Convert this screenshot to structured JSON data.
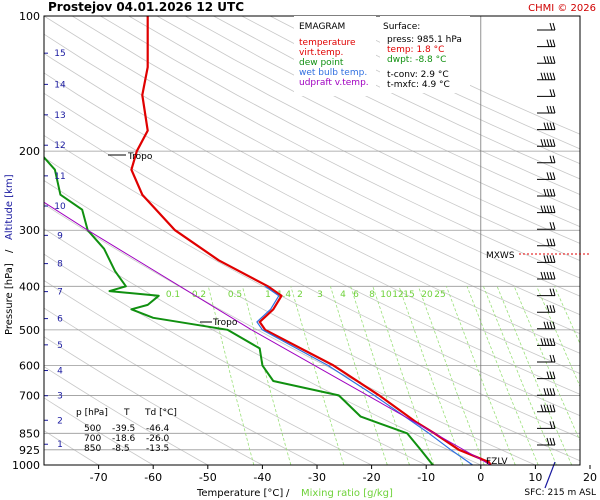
{
  "header": {
    "title": "Prostejov   04.01.2026 12 UTC",
    "copyright": "CHMI © 2026"
  },
  "legend": {
    "title": "EMAGRAM",
    "items": [
      {
        "label": "temperature",
        "color": "#e00000"
      },
      {
        "label": "virt.temp.",
        "color": "#e00000"
      },
      {
        "label": "dew point",
        "color": "#109010"
      },
      {
        "label": "wet bulb temp.",
        "color": "#3070e0"
      },
      {
        "label": "udpraft v.temp.",
        "color": "#a000c0"
      }
    ]
  },
  "surface": {
    "title": "Surface:",
    "press": "press: 985.1 hPa",
    "temp": "temp: 1.8 °C",
    "dwpt": "dwpt: -8.8 °C",
    "tconv": "t-conv: 2.9 °C",
    "tmxfc": "t-mxfc: 4.9 °C"
  },
  "table": {
    "header": [
      "p [hPa]",
      "T",
      "Td [°C]"
    ],
    "rows": [
      [
        "500",
        "-39.5",
        "-46.4"
      ],
      [
        "700",
        "-18.6",
        "-26.0"
      ],
      [
        "850",
        "-8.5",
        "-13.5"
      ]
    ]
  },
  "annotations": {
    "tropo_upper": "Tropo",
    "tropo_lower": "Tropo",
    "mxws": "MXWS",
    "fzlv": "FZLV",
    "sfc": "SFC: 215 m ASL"
  },
  "axes": {
    "xlabel_temp": "Temperature [°C]",
    "xlabel_sep": "/",
    "xlabel_mix": "Mixing ratio [g/kg]",
    "ylabel_press": "Pressure [hPa]",
    "ylabel_sep": "/",
    "ylabel_alt": "Altitude [km]"
  },
  "colors": {
    "temperature": "#e00000",
    "dewpoint": "#109010",
    "wetbulb": "#3070e0",
    "updraft": "#a000c0",
    "altitude": "#1a1aa0",
    "mixing": "#6fd23a"
  },
  "chart_data": {
    "type": "line",
    "title": "EMAGRAM",
    "xlabel": "Temperature [°C]",
    "ylabel": "Pressure [hPa]",
    "xlim": [
      -80,
      20
    ],
    "ylim_pressure": [
      1000,
      100
    ],
    "y_scale": "log",
    "pressure_ticks": [
      100,
      200,
      300,
      400,
      500,
      600,
      700,
      850,
      925,
      1000
    ],
    "temperature_ticks": [
      -70,
      -60,
      -50,
      -40,
      -30,
      -20,
      -10,
      0,
      10,
      20
    ],
    "altitude_ticks": [
      1,
      2,
      3,
      4,
      5,
      6,
      7,
      8,
      9,
      10,
      11,
      12,
      13,
      14,
      15
    ],
    "mixing_ratio_labels": [
      "0.1",
      "0.2",
      "0.5",
      "1",
      "1.4",
      "2",
      "3",
      "4",
      "6",
      "8",
      "10",
      "12",
      "15",
      "20",
      "25"
    ],
    "series": [
      {
        "name": "temperature",
        "points": [
          [
            1000,
            1.8
          ],
          [
            985,
            1.5
          ],
          [
            925,
            -4
          ],
          [
            850,
            -8.5
          ],
          [
            800,
            -12
          ],
          [
            700,
            -18.6
          ],
          [
            600,
            -27
          ],
          [
            500,
            -39.5
          ],
          [
            480,
            -40.5
          ],
          [
            450,
            -38
          ],
          [
            420,
            -36.5
          ],
          [
            400,
            -39
          ],
          [
            350,
            -48
          ],
          [
            300,
            -56
          ],
          [
            250,
            -62
          ],
          [
            220,
            -64
          ],
          [
            200,
            -63
          ],
          [
            180,
            -61
          ],
          [
            150,
            -62
          ],
          [
            130,
            -61
          ],
          [
            110,
            -61
          ],
          [
            100,
            -61
          ]
        ]
      },
      {
        "name": "wet bulb temp.",
        "points": [
          [
            1000,
            -1.5
          ],
          [
            925,
            -5.5
          ],
          [
            850,
            -9.5
          ],
          [
            700,
            -19.5
          ],
          [
            600,
            -28
          ],
          [
            500,
            -40
          ],
          [
            480,
            -41
          ],
          [
            450,
            -38.5
          ],
          [
            420,
            -37
          ],
          [
            400,
            -39.5
          ]
        ]
      },
      {
        "name": "dew point",
        "points": [
          [
            1000,
            -8.8
          ],
          [
            925,
            -11
          ],
          [
            850,
            -13.5
          ],
          [
            780,
            -22
          ],
          [
            700,
            -26
          ],
          [
            650,
            -38
          ],
          [
            600,
            -40
          ],
          [
            550,
            -40.5
          ],
          [
            500,
            -46.4
          ],
          [
            470,
            -60
          ],
          [
            450,
            -64
          ],
          [
            440,
            -61
          ],
          [
            420,
            -59
          ],
          [
            410,
            -68
          ],
          [
            400,
            -65
          ],
          [
            370,
            -67
          ],
          [
            330,
            -69
          ],
          [
            300,
            -72
          ],
          [
            270,
            -73
          ],
          [
            250,
            -77
          ],
          [
            220,
            -78
          ],
          [
            200,
            -81
          ]
        ]
      },
      {
        "name": "udpraft v.temp.",
        "points": [
          [
            1000,
            1.8
          ],
          [
            500,
            -42
          ],
          [
            300,
            -72
          ],
          [
            260,
            -80
          ]
        ]
      }
    ]
  }
}
